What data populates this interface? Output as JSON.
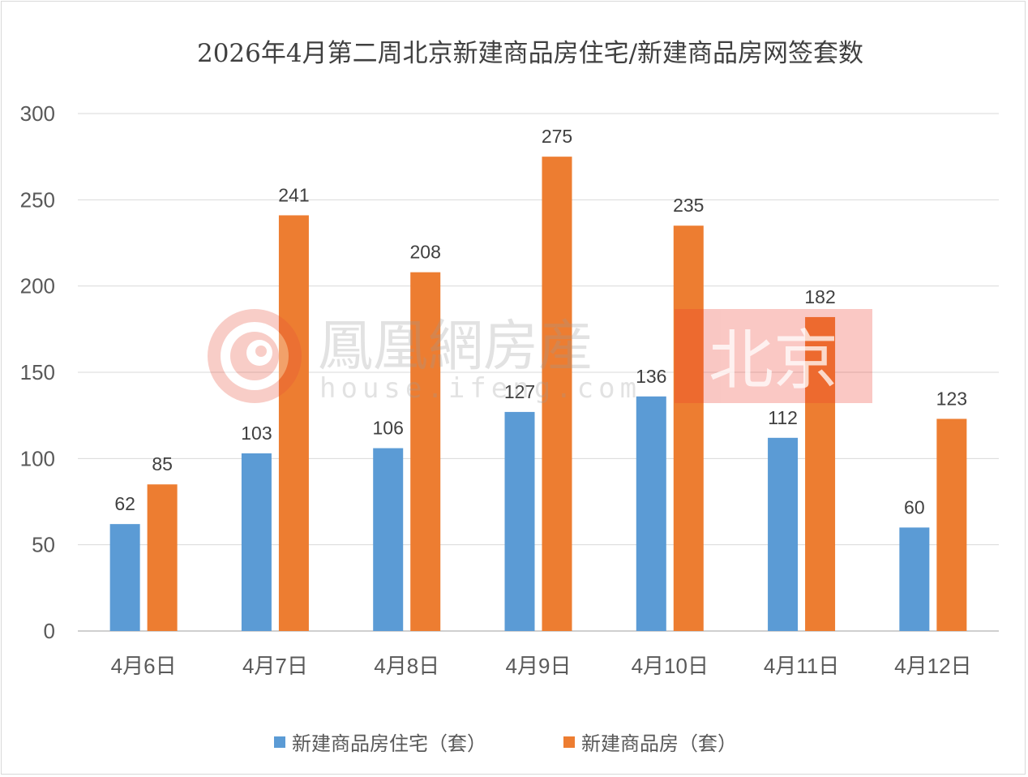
{
  "chart_data": {
    "type": "bar",
    "title": "2026年4月第二周北京新建商品房住宅/新建商品房网签套数",
    "categories": [
      "4月6日",
      "4月7日",
      "4月8日",
      "4月9日",
      "4月10日",
      "4月11日",
      "4月12日"
    ],
    "series": [
      {
        "name": "新建商品房住宅（套）",
        "color": "#5b9bd5",
        "values": [
          62,
          103,
          106,
          127,
          136,
          112,
          60
        ]
      },
      {
        "name": "新建商品房（套）",
        "color": "#ed7d31",
        "values": [
          85,
          241,
          208,
          275,
          235,
          182,
          123
        ]
      }
    ],
    "ylim": [
      0,
      300
    ],
    "yticks": [
      0,
      50,
      100,
      150,
      200,
      250,
      300
    ],
    "grid": true,
    "legend": "bottom",
    "data_labels": true
  },
  "watermark": {
    "brand": "鳳凰網房産",
    "url": "house.ifeng.com",
    "city": "北京"
  }
}
